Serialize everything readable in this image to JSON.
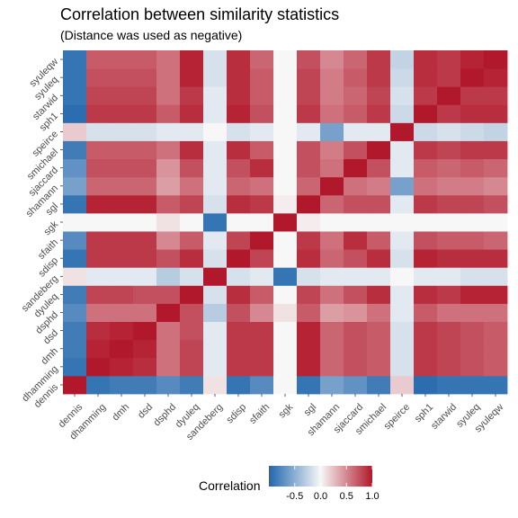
{
  "chart_data": {
    "type": "heatmap",
    "title": "Correlation between similarity statistics",
    "subtitle": "(Distance was used as negative)",
    "x": [
      "dennis",
      "dhamming",
      "dmh",
      "dsd",
      "dsphd",
      "dyuleq",
      "sandeberg",
      "sdisp",
      "sfaith",
      "sgk",
      "sgl",
      "shamann",
      "sjaccard",
      "smichael",
      "speirce",
      "sph1",
      "starwid",
      "syuleq",
      "syuleqw"
    ],
    "y": [
      "dennis",
      "dhamming",
      "dmh",
      "dsd",
      "dsphd",
      "dyuleq",
      "sandeberg",
      "sdisp",
      "sfaith",
      "sgk",
      "sgl",
      "shamann",
      "sjaccard",
      "smichael",
      "speirce",
      "sph1",
      "starwid",
      "syuleq",
      "syuleqw"
    ],
    "values": [
      [
        1.0,
        -0.9,
        -0.85,
        -0.85,
        -0.75,
        -0.85,
        0.1,
        -0.9,
        -0.75,
        0.0,
        -0.9,
        -0.6,
        -0.7,
        -0.85,
        0.2,
        -0.95,
        -0.9,
        -0.9,
        -0.9
      ],
      [
        -0.9,
        1.0,
        0.95,
        0.9,
        0.6,
        0.8,
        -0.1,
        0.85,
        0.85,
        0.0,
        0.95,
        0.65,
        0.75,
        0.7,
        -0.15,
        0.85,
        0.8,
        0.75,
        0.7
      ],
      [
        -0.85,
        0.95,
        1.0,
        0.95,
        0.6,
        0.8,
        -0.1,
        0.85,
        0.85,
        0.0,
        0.95,
        0.65,
        0.75,
        0.7,
        -0.15,
        0.85,
        0.8,
        0.75,
        0.7
      ],
      [
        -0.85,
        0.9,
        0.95,
        1.0,
        0.6,
        0.75,
        -0.1,
        0.85,
        0.85,
        0.0,
        0.95,
        0.65,
        0.75,
        0.7,
        -0.15,
        0.85,
        0.8,
        0.75,
        0.7
      ],
      [
        -0.75,
        0.6,
        0.6,
        0.6,
        1.0,
        0.75,
        -0.3,
        0.75,
        0.5,
        0.1,
        0.7,
        0.4,
        0.45,
        0.6,
        -0.1,
        0.7,
        0.6,
        0.6,
        0.6
      ],
      [
        -0.85,
        0.8,
        0.8,
        0.75,
        0.75,
        1.0,
        -0.15,
        0.9,
        0.7,
        0.0,
        0.8,
        0.6,
        0.75,
        0.9,
        -0.1,
        0.9,
        0.85,
        0.95,
        0.95
      ],
      [
        0.1,
        -0.1,
        -0.1,
        -0.1,
        -0.3,
        -0.15,
        1.0,
        -0.15,
        -0.1,
        -0.9,
        -0.15,
        -0.1,
        -0.1,
        -0.1,
        0.0,
        -0.1,
        -0.1,
        -0.15,
        -0.15
      ],
      [
        -0.9,
        0.85,
        0.85,
        0.85,
        0.75,
        0.9,
        -0.15,
        1.0,
        0.8,
        0.0,
        0.9,
        0.65,
        0.75,
        0.9,
        -0.15,
        0.95,
        0.9,
        0.9,
        0.9
      ],
      [
        -0.75,
        0.85,
        0.85,
        0.85,
        0.5,
        0.7,
        -0.1,
        0.8,
        1.0,
        0.0,
        0.85,
        0.6,
        0.9,
        0.7,
        -0.1,
        0.75,
        0.7,
        0.7,
        0.65
      ],
      [
        0.0,
        0.0,
        0.0,
        0.0,
        0.1,
        0.0,
        -0.9,
        0.0,
        0.0,
        1.0,
        0.05,
        0.0,
        0.0,
        0.0,
        0.0,
        0.0,
        0.0,
        0.0,
        0.0
      ],
      [
        -0.9,
        0.95,
        0.95,
        0.95,
        0.7,
        0.8,
        -0.15,
        0.9,
        0.85,
        0.05,
        1.0,
        0.65,
        0.75,
        0.75,
        -0.1,
        0.85,
        0.8,
        0.8,
        0.75
      ],
      [
        -0.6,
        0.65,
        0.65,
        0.65,
        0.4,
        0.6,
        -0.1,
        0.65,
        0.6,
        0.0,
        0.65,
        1.0,
        0.6,
        0.55,
        -0.6,
        0.6,
        0.55,
        0.55,
        0.5
      ],
      [
        -0.7,
        0.75,
        0.75,
        0.75,
        0.45,
        0.75,
        -0.1,
        0.75,
        0.9,
        0.0,
        0.75,
        0.6,
        1.0,
        0.75,
        -0.1,
        0.7,
        0.65,
        0.7,
        0.65
      ],
      [
        -0.85,
        0.7,
        0.7,
        0.7,
        0.6,
        0.9,
        -0.1,
        0.9,
        0.7,
        0.0,
        0.75,
        0.55,
        0.75,
        1.0,
        -0.1,
        0.85,
        0.8,
        0.85,
        0.85
      ],
      [
        0.2,
        -0.15,
        -0.15,
        -0.15,
        -0.1,
        -0.1,
        0.0,
        -0.15,
        -0.1,
        0.0,
        -0.1,
        -0.6,
        -0.1,
        -0.1,
        1.0,
        -0.2,
        -0.15,
        -0.2,
        -0.25
      ],
      [
        -0.95,
        0.85,
        0.85,
        0.85,
        0.7,
        0.9,
        -0.1,
        0.95,
        0.75,
        0.0,
        0.85,
        0.6,
        0.7,
        0.85,
        -0.2,
        1.0,
        0.85,
        0.9,
        0.9
      ],
      [
        -0.9,
        0.8,
        0.8,
        0.8,
        0.6,
        0.85,
        -0.1,
        0.9,
        0.7,
        0.0,
        0.8,
        0.55,
        0.65,
        0.8,
        -0.15,
        0.85,
        1.0,
        0.85,
        0.85
      ],
      [
        -0.9,
        0.75,
        0.75,
        0.75,
        0.6,
        0.95,
        -0.15,
        0.9,
        0.7,
        0.0,
        0.8,
        0.55,
        0.7,
        0.85,
        -0.2,
        0.9,
        0.85,
        1.0,
        0.95
      ],
      [
        -0.9,
        0.7,
        0.7,
        0.7,
        0.6,
        0.95,
        -0.15,
        0.9,
        0.65,
        0.0,
        0.75,
        0.5,
        0.65,
        0.85,
        -0.25,
        0.9,
        0.85,
        0.95,
        1.0
      ]
    ],
    "legend": {
      "title": "Correlation",
      "ticks": [
        -0.5,
        0.0,
        0.5,
        1.0
      ],
      "tick_labels": [
        "-0.5",
        "0.0",
        "0.5",
        "1.0"
      ],
      "range": [
        -1,
        1
      ],
      "placement": "bottom"
    },
    "colors": {
      "low": "#2166ac",
      "mid": "#f7f7f7",
      "high": "#b2182b"
    },
    "grid": false
  }
}
